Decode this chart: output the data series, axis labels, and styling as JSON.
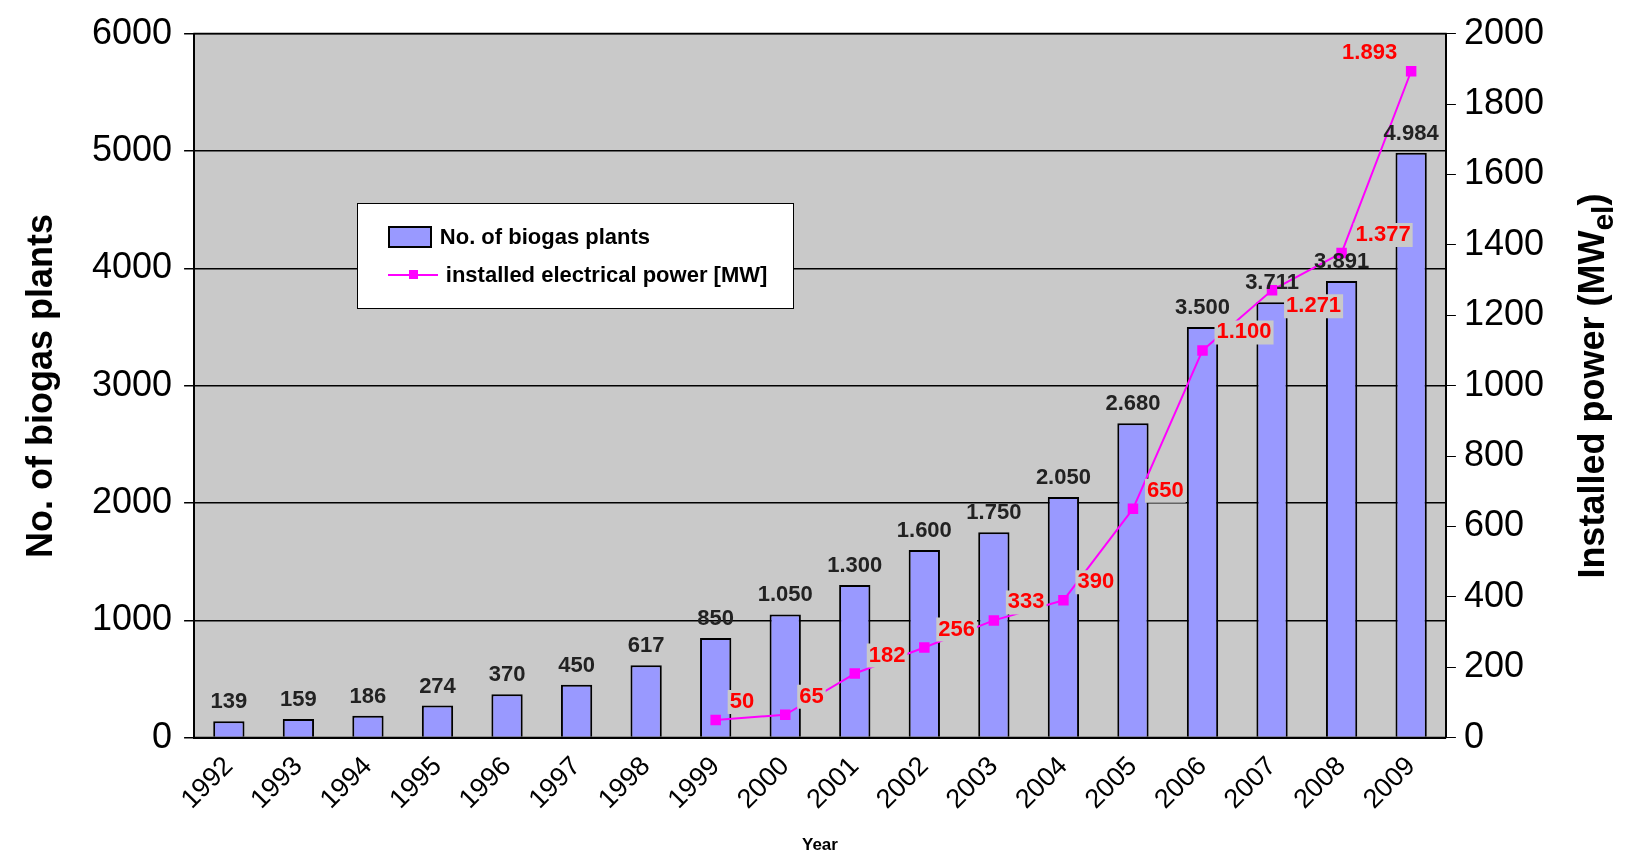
{
  "chart_data": {
    "type": "bar",
    "xlabel": "Year",
    "ylabel": "No. of biogas plants",
    "y2label": "Installed power (MW$_{el}$)",
    "categories": [
      "1992",
      "1993",
      "1994",
      "1995",
      "1996",
      "1997",
      "1998",
      "1999",
      "2000",
      "2001",
      "2002",
      "2003",
      "2004",
      "2005",
      "2006",
      "2007",
      "2008",
      "2009"
    ],
    "series": [
      {
        "name": "No. of biogas plants",
        "color": "#9999ff",
        "values": [
          139,
          159,
          186,
          274,
          370,
          450,
          617,
          850,
          1050,
          1300,
          1600,
          1750,
          2050,
          2680,
          3500,
          3711,
          3891,
          4984
        ],
        "value_labels": [
          "139",
          "159",
          "186",
          "274",
          "370",
          "450",
          "617",
          "850",
          "1.050",
          "1.300",
          "1.600",
          "1.750",
          "2.050",
          "2.680",
          "3.500",
          "3.711",
          "3.891",
          "4.984"
        ]
      },
      {
        "name": "installed electrical power [MW]",
        "type": "line",
        "axis": "y2",
        "color": "#ff00ff",
        "marker": "square",
        "values": [
          null,
          null,
          null,
          null,
          null,
          null,
          null,
          50,
          65,
          182,
          256,
          333,
          390,
          650,
          1100,
          1271,
          1377,
          1893
        ],
        "value_labels": [
          null,
          null,
          null,
          null,
          null,
          null,
          null,
          "50",
          "65",
          "182",
          "256",
          "333",
          "390",
          "650",
          "1.100",
          "1.271",
          "1.377",
          "1.893"
        ]
      }
    ],
    "ylim": [
      0,
      6000
    ],
    "yticks": [
      0,
      1000,
      2000,
      3000,
      4000,
      5000,
      6000
    ],
    "y2lim": [
      0,
      2000
    ],
    "y2ticks": [
      0,
      200,
      400,
      600,
      800,
      1000,
      1200,
      1400,
      1600,
      1800,
      2000
    ],
    "grid": "y",
    "legend": "top left"
  }
}
